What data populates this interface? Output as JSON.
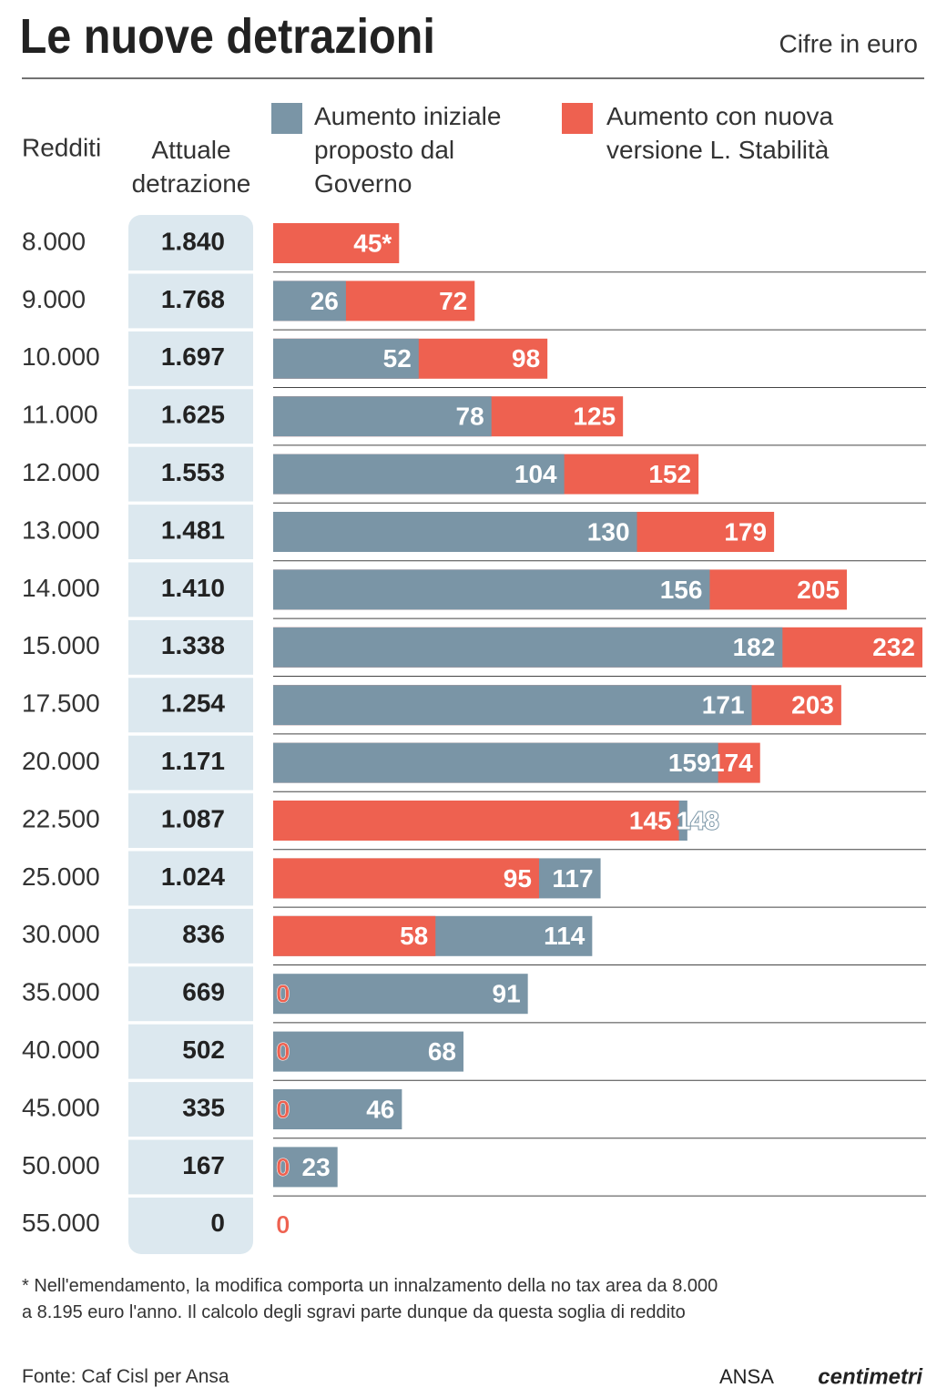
{
  "chart_data": {
    "type": "bar",
    "title": "Le nuove detrazioni",
    "subtitle": "Cifre in euro",
    "category_label": "Redditi",
    "categories": [
      "8.000",
      "9.000",
      "10.000",
      "11.000",
      "12.000",
      "13.000",
      "14.000",
      "15.000",
      "17.500",
      "20.000",
      "22.500",
      "25.000",
      "30.000",
      "35.000",
      "40.000",
      "45.000",
      "50.000",
      "55.000"
    ],
    "table_column": {
      "name": "Attuale detrazione",
      "values": [
        1840,
        1768,
        1697,
        1625,
        1553,
        1481,
        1410,
        1338,
        1254,
        1171,
        1087,
        1024,
        836,
        669,
        502,
        335,
        167,
        0
      ],
      "value_labels": [
        "1.840",
        "1.768",
        "1.697",
        "1.625",
        "1.553",
        "1.481",
        "1.410",
        "1.338",
        "1.254",
        "1.171",
        "1.087",
        "1.024",
        "836",
        "669",
        "502",
        "335",
        "167",
        "0"
      ]
    },
    "series": [
      {
        "name": "Aumento iniziale proposto dal Governo",
        "color": "#7a95a6",
        "values": [
          null,
          26,
          52,
          78,
          104,
          130,
          156,
          182,
          171,
          159,
          148,
          117,
          114,
          91,
          68,
          46,
          23,
          null
        ]
      },
      {
        "name": "Aumento con nuova versione L. Stabilità",
        "color": "#ee6150",
        "values": [
          45,
          72,
          98,
          125,
          152,
          179,
          205,
          232,
          203,
          174,
          145,
          95,
          58,
          0,
          0,
          0,
          0,
          0
        ],
        "value_labels": [
          "45*",
          "72",
          "98",
          "125",
          "152",
          "179",
          "205",
          "232",
          "203",
          "174",
          "145",
          "95",
          "58",
          "0",
          "0",
          "0",
          "0",
          "0"
        ]
      }
    ],
    "note": "* Nell'emendamento, la modifica comporta un innalzamento della no tax area da 8.000 a 8.195 euro l'anno. Il calcolo degli sgravi parte dunque da questa soglia di reddito",
    "source": "Fonte: Caf Cisl per Ansa",
    "brand": [
      "ANSA",
      "centimetri"
    ]
  }
}
